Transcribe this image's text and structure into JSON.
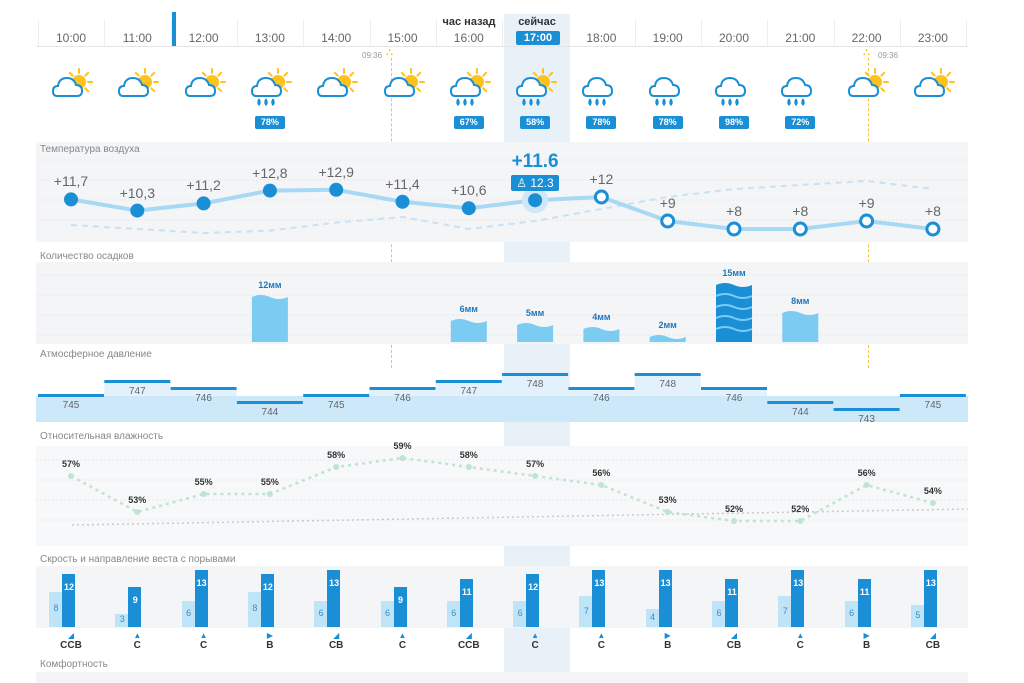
{
  "header": {
    "hour_ago_label": "час назад",
    "now_label": "сейчас",
    "hours": [
      "10:00",
      "11:00",
      "12:00",
      "13:00",
      "14:00",
      "15:00",
      "16:00",
      "17:00",
      "18:00",
      "19:00",
      "20:00",
      "21:00",
      "22:00",
      "23:00"
    ],
    "current_index": 7,
    "sunrise_time": "09:36",
    "sunset_time": "09:36"
  },
  "icons": [
    "partly-cloudy-icon",
    "partly-cloudy-icon",
    "partly-cloudy-icon",
    "partly-cloudy-rain-icon",
    "partly-cloudy-icon",
    "partly-cloudy-icon",
    "partly-cloudy-rain-icon",
    "partly-cloudy-rain-icon",
    "rain-icon",
    "rain-icon",
    "rain-icon",
    "rain-icon",
    "partly-cloudy-icon",
    "partly-cloudy-icon"
  ],
  "precip_probability": [
    "",
    "",
    "",
    "78%",
    "",
    "",
    "67%",
    "58%",
    "78%",
    "78%",
    "98%",
    "72%",
    "",
    ""
  ],
  "temperature": {
    "title": "Температура воздуха",
    "values": [
      "+11,7",
      "+10,3",
      "+11,2",
      "+12,8",
      "+12,9",
      "+11,4",
      "+10,6",
      "+11.6",
      "+12",
      "+9",
      "+8",
      "+8",
      "+9",
      "+8"
    ],
    "numeric": [
      11.7,
      10.3,
      11.2,
      12.8,
      12.9,
      11.4,
      10.6,
      11.6,
      12,
      9,
      8,
      8,
      9,
      8
    ],
    "feels_like": "12.3",
    "feels_like_numeric": [
      8.5,
      8.0,
      7.5,
      7.8,
      8.8,
      9.5,
      8.0,
      9.0,
      10.5,
      12.0,
      13.0,
      13.5,
      14.0,
      13.0
    ]
  },
  "precipitation": {
    "title": "Количество осадков",
    "values": [
      "",
      "",
      "",
      "12мм",
      "",
      "",
      "6мм",
      "5мм",
      "4мм",
      "2мм",
      "15мм",
      "8мм",
      "",
      ""
    ],
    "numeric": [
      0,
      0,
      0,
      12,
      0,
      0,
      6,
      5,
      4,
      2,
      15,
      8,
      0,
      0
    ]
  },
  "pressure": {
    "title": "Атмосферное давление",
    "values": [
      "745",
      "747",
      "746",
      "744",
      "745",
      "746",
      "747",
      "748",
      "746",
      "748",
      "746",
      "744",
      "743",
      "745"
    ]
  },
  "humidity": {
    "title": "Относительная влажность",
    "values": [
      "57%",
      "53%",
      "55%",
      "55%",
      "58%",
      "59%",
      "58%",
      "57%",
      "56%",
      "53%",
      "52%",
      "52%",
      "56%",
      "54%"
    ],
    "numeric": [
      57,
      53,
      55,
      55,
      58,
      59,
      58,
      57,
      56,
      53,
      52,
      52,
      56,
      54
    ]
  },
  "wind": {
    "title": "Скрость и направление веста с порывами",
    "speed": [
      "8",
      "3",
      "6",
      "8",
      "6",
      "6",
      "6",
      "6",
      "7",
      "4",
      "6",
      "7",
      "6",
      "5"
    ],
    "gust": [
      "12",
      "9",
      "13",
      "12",
      "13",
      "9",
      "11",
      "12",
      "13",
      "13",
      "11",
      "13",
      "11",
      "13"
    ],
    "speed_numeric": [
      8,
      3,
      6,
      8,
      6,
      6,
      6,
      6,
      7,
      4,
      6,
      7,
      6,
      5
    ],
    "gust_numeric": [
      12,
      9,
      13,
      12,
      13,
      9,
      11,
      12,
      13,
      13,
      11,
      13,
      11,
      13
    ],
    "direction": [
      "ССВ",
      "С",
      "С",
      "В",
      "СВ",
      "С",
      "ССВ",
      "С",
      "С",
      "В",
      "СВ",
      "С",
      "В",
      "СВ"
    ],
    "arrows": [
      "◢",
      "▲",
      "▲",
      "▶",
      "◢",
      "▲",
      "◢",
      "▲",
      "▲",
      "▶",
      "◢",
      "▲",
      "▶",
      "◢"
    ]
  },
  "comfort": {
    "title": "Комфортность"
  },
  "colors": {
    "accent": "#1a8fd6",
    "light_blue": "#a9d8f5",
    "band": "#f4f5f7",
    "sun": "#ffc21a",
    "cloud": "#1a8fd6"
  }
}
